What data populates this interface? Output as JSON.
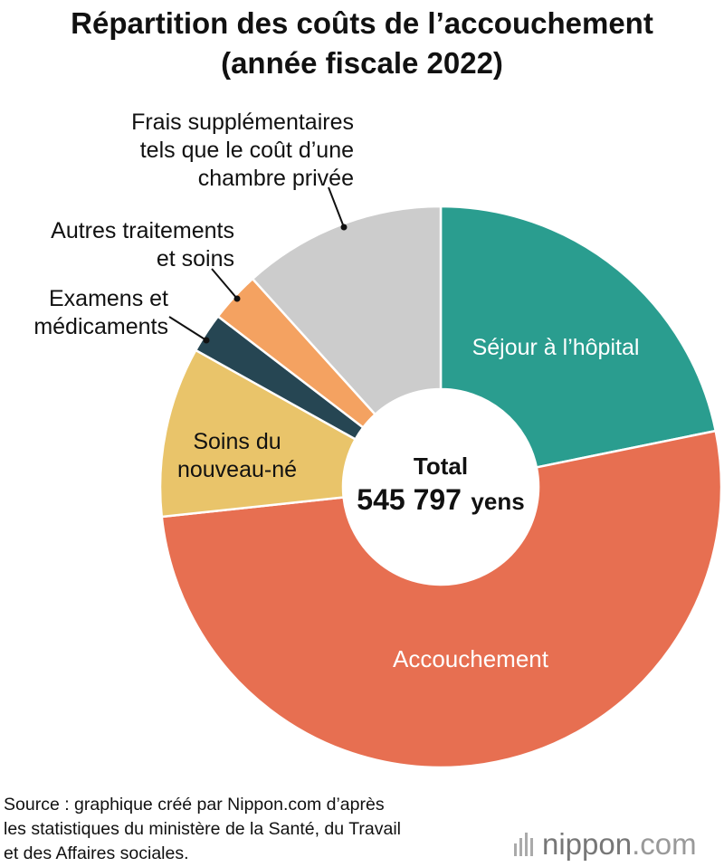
{
  "title": {
    "line1": "Répartition des coûts de l’accouchement",
    "line2": "(année fiscale 2022)"
  },
  "center": {
    "label": "Total",
    "value": "545 797",
    "unit": "yens"
  },
  "source": {
    "line1": "Source : graphique créé par Nippon.com d’après",
    "line2": "les statistiques du ministère de la Santé, du Travail",
    "line3": "et des Affaires sociales."
  },
  "brand": {
    "name": "nippon",
    "domain": ".com"
  },
  "chart_data": {
    "type": "pie",
    "donut": true,
    "start": "12 o'clock",
    "direction": "clockwise",
    "slices": [
      {
        "label": "Séjour à l’hôpital",
        "value": 21.8,
        "color": "#2a9d8f",
        "label_color": "#ffffff",
        "label_placement": "inside"
      },
      {
        "label": "Accouchement",
        "value": 51.5,
        "color": "#e76f51",
        "label_color": "#ffffff",
        "label_placement": "inside"
      },
      {
        "label": "Soins du nouveau-né",
        "value": 9.8,
        "color": "#e9c46a",
        "label_color": "#111111",
        "label_placement": "inside"
      },
      {
        "label": "Examens et médicaments",
        "value": 2.3,
        "color": "#264653",
        "label_color": "#111111",
        "label_placement": "outside"
      },
      {
        "label": "Autres traitements et soins",
        "value": 2.9,
        "color": "#f4a261",
        "label_color": "#111111",
        "label_placement": "outside"
      },
      {
        "label": "Frais supplémentaires tels que le coût d’une chambre privée",
        "value": 11.7,
        "color": "#cccccc",
        "label_color": "#111111",
        "label_placement": "outside"
      }
    ]
  }
}
